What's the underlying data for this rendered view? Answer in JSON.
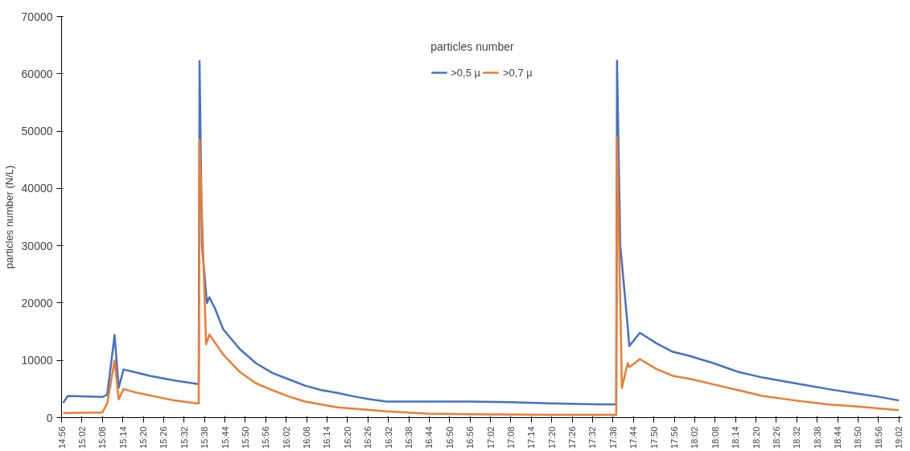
{
  "chart_data": {
    "type": "line",
    "ylabel": "particles number (N/L)",
    "legend_title": "particles number",
    "legend": "top",
    "grid": false,
    "marker": "none",
    "line_style": "solid",
    "xlim": [
      14.9333,
      19.05
    ],
    "ylim": [
      0,
      70000
    ],
    "yticks": [
      0,
      10000,
      20000,
      30000,
      40000,
      50000,
      60000,
      70000
    ],
    "xticks": [
      {
        "value": 14.9333,
        "label": "14:56"
      },
      {
        "value": 15.0333,
        "label": "15:02"
      },
      {
        "value": 15.1333,
        "label": "15:08"
      },
      {
        "value": 15.2333,
        "label": "15:14"
      },
      {
        "value": 15.3333,
        "label": "15:20"
      },
      {
        "value": 15.4333,
        "label": "15:26"
      },
      {
        "value": 15.5333,
        "label": "15:32"
      },
      {
        "value": 15.6333,
        "label": "15:38"
      },
      {
        "value": 15.7333,
        "label": "15:44"
      },
      {
        "value": 15.8333,
        "label": "15:50"
      },
      {
        "value": 15.9333,
        "label": "15:56"
      },
      {
        "value": 16.0333,
        "label": "16:02"
      },
      {
        "value": 16.1333,
        "label": "16:08"
      },
      {
        "value": 16.2333,
        "label": "16:14"
      },
      {
        "value": 16.3333,
        "label": "16:20"
      },
      {
        "value": 16.4333,
        "label": "16:26"
      },
      {
        "value": 16.5333,
        "label": "16:32"
      },
      {
        "value": 16.6333,
        "label": "16:38"
      },
      {
        "value": 16.7333,
        "label": "16:44"
      },
      {
        "value": 16.8333,
        "label": "16:50"
      },
      {
        "value": 16.9333,
        "label": "16:56"
      },
      {
        "value": 17.0333,
        "label": "17:02"
      },
      {
        "value": 17.1333,
        "label": "17:08"
      },
      {
        "value": 17.2333,
        "label": "17:14"
      },
      {
        "value": 17.3333,
        "label": "17:20"
      },
      {
        "value": 17.4333,
        "label": "17:26"
      },
      {
        "value": 17.5333,
        "label": "17:32"
      },
      {
        "value": 17.6333,
        "label": "17:38"
      },
      {
        "value": 17.7333,
        "label": "17:44"
      },
      {
        "value": 17.8333,
        "label": "17:50"
      },
      {
        "value": 17.9333,
        "label": "17:56"
      },
      {
        "value": 18.0333,
        "label": "18:02"
      },
      {
        "value": 18.1333,
        "label": "18:08"
      },
      {
        "value": 18.2333,
        "label": "18:14"
      },
      {
        "value": 18.3333,
        "label": "18:20"
      },
      {
        "value": 18.4333,
        "label": "18:26"
      },
      {
        "value": 18.5333,
        "label": "18:32"
      },
      {
        "value": 18.6333,
        "label": "18:38"
      },
      {
        "value": 18.7333,
        "label": "18:44"
      },
      {
        "value": 18.8333,
        "label": "18:50"
      },
      {
        "value": 18.9333,
        "label": "18:56"
      },
      {
        "value": 19.0333,
        "label": "19:02"
      }
    ],
    "series": [
      {
        "name": ">0,5 µ",
        "color": "#4472c4",
        "x": [
          14.941,
          14.965,
          15.133,
          15.157,
          15.193,
          15.213,
          15.237,
          15.285,
          15.365,
          15.485,
          15.597,
          15.605,
          15.609,
          15.621,
          15.645,
          15.657,
          15.685,
          15.725,
          15.805,
          15.885,
          15.965,
          16.045,
          16.125,
          16.205,
          16.285,
          16.365,
          16.445,
          16.525,
          16.725,
          16.925,
          17.125,
          17.325,
          17.565,
          17.641,
          17.649,
          17.653,
          17.669,
          17.705,
          17.713,
          17.765,
          17.845,
          17.925,
          18.005,
          18.125,
          18.245,
          18.365,
          18.525,
          18.685,
          18.845,
          18.925,
          19.033
        ],
        "values": [
          2600,
          3800,
          3600,
          4000,
          14400,
          5200,
          8400,
          8000,
          7300,
          6500,
          5900,
          5900,
          62200,
          30000,
          20000,
          21000,
          19000,
          15400,
          12000,
          9500,
          7800,
          6700,
          5600,
          4800,
          4300,
          3700,
          3200,
          2800,
          2800,
          2800,
          2700,
          2500,
          2300,
          2300,
          2300,
          62300,
          30000,
          16000,
          12500,
          14800,
          13000,
          11500,
          10800,
          9500,
          8000,
          7000,
          6000,
          5000,
          4100,
          3700,
          3000
        ]
      },
      {
        "name": ">0,7 µ",
        "color": "#ed7d31",
        "x": [
          14.941,
          15.133,
          15.157,
          15.193,
          15.213,
          15.237,
          15.285,
          15.485,
          15.597,
          15.605,
          15.609,
          15.641,
          15.657,
          15.725,
          15.805,
          15.885,
          15.965,
          16.045,
          16.125,
          16.285,
          16.525,
          16.725,
          16.925,
          17.325,
          17.641,
          17.649,
          17.653,
          17.677,
          17.705,
          17.713,
          17.765,
          17.845,
          17.925,
          18.005,
          18.125,
          18.245,
          18.365,
          18.525,
          18.685,
          18.845,
          19.033
        ],
        "values": [
          800,
          900,
          2500,
          10000,
          3200,
          5000,
          4500,
          3000,
          2500,
          2500,
          48500,
          12800,
          14500,
          11000,
          8000,
          6000,
          4800,
          3700,
          2800,
          1800,
          1100,
          700,
          600,
          500,
          500,
          500,
          49000,
          5200,
          9500,
          8800,
          10200,
          8500,
          7300,
          6800,
          5800,
          4800,
          3800,
          3000,
          2300,
          1900,
          1300
        ]
      }
    ]
  }
}
